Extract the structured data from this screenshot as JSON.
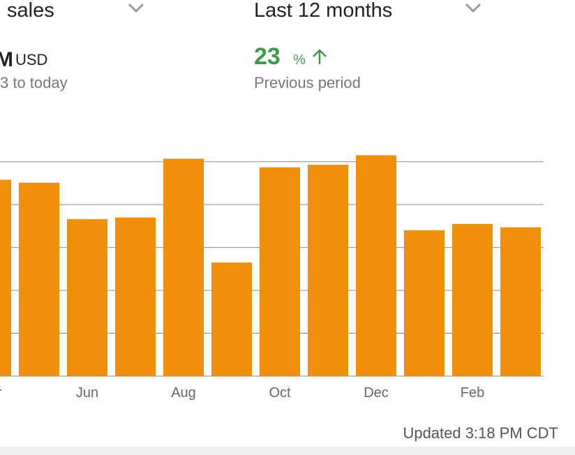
{
  "header": {
    "metric": "sales",
    "range": "Last 12 months",
    "total_suffix": "M",
    "currency": "USD",
    "total_period": "3 to today",
    "change": 23,
    "change_unit": "%",
    "change_label": "Previous period"
  },
  "chart_data": {
    "type": "bar",
    "categories": [
      "Apr",
      null,
      "Jun",
      null,
      "Aug",
      null,
      "Oct",
      null,
      "Dec",
      null,
      "Feb",
      null
    ],
    "values": [
      4.58,
      4.51,
      3.66,
      3.7,
      5.07,
      2.65,
      4.87,
      4.93,
      5.15,
      3.4,
      3.55,
      3.47
    ],
    "color": "#f0900a",
    "ylim": [
      0,
      5.5
    ],
    "yticks": [
      0,
      1,
      2,
      3,
      4,
      5
    ],
    "grid": true
  },
  "footer": "Updated 3:18 PM CDT"
}
